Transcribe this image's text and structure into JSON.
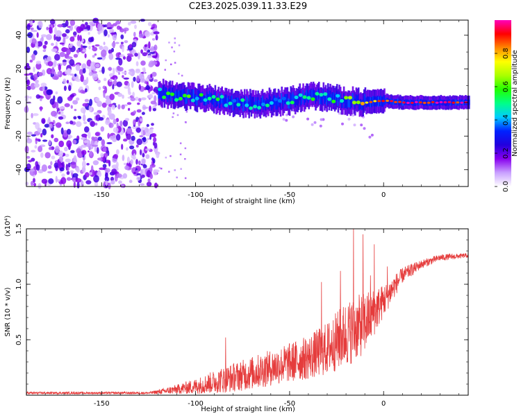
{
  "figure_title": "C2E3.2025.039.11.33.E29",
  "chart_data": [
    {
      "type": "heatmap",
      "title": "C2E3.2025.039.11.33.E29",
      "xlabel": "Height of straight line (km)",
      "ylabel": "Frequency (Hz)",
      "xlim": [
        -190,
        45
      ],
      "ylim": [
        -50,
        49
      ],
      "x_ticks": [
        -150,
        -100,
        -50,
        0
      ],
      "y_ticks": [
        -40,
        -20,
        0,
        20,
        40
      ],
      "x_tick_labels": [
        "-150",
        "-100",
        "-50",
        "0"
      ],
      "y_tick_labels": [
        "-40",
        "-20",
        "0",
        "20",
        "40"
      ],
      "colorbar": {
        "label": "Normalized spectral amplitude",
        "range": [
          0.0,
          1.0
        ],
        "ticks": [
          0.0,
          0.2,
          0.4,
          0.6,
          0.8
        ],
        "tick_labels": [
          "0.0",
          "0.2",
          "0.4",
          "0.6",
          "0.8"
        ],
        "colormap": [
          "#ffffff",
          "#c9a0ff",
          "#8800ee",
          "#2200dd",
          "#0022ff",
          "#00ccff",
          "#00ff88",
          "#22ff00",
          "#aaff00",
          "#ffff00",
          "#ff8800",
          "#ff0000",
          "#ff00bb"
        ]
      },
      "noise_region": {
        "x_range": [
          -190,
          -120
        ],
        "freq_range": [
          -50,
          49
        ],
        "level_range": [
          0.05,
          0.25
        ]
      },
      "signal_trace": {
        "description": "frequency centroid of dominant spectral band",
        "points": [
          {
            "x": -120,
            "freq": 6,
            "amp": 0.5
          },
          {
            "x": -110,
            "freq": 4,
            "amp": 0.55
          },
          {
            "x": -100,
            "freq": 3,
            "amp": 0.5
          },
          {
            "x": -90,
            "freq": 2,
            "amp": 0.5
          },
          {
            "x": -80,
            "freq": 0,
            "amp": 0.45
          },
          {
            "x": -70,
            "freq": -1,
            "amp": 0.5
          },
          {
            "x": -60,
            "freq": 0,
            "amp": 0.45
          },
          {
            "x": -50,
            "freq": 1,
            "amp": 0.45
          },
          {
            "x": -40,
            "freq": 4,
            "amp": 0.5
          },
          {
            "x": -30,
            "freq": 3,
            "amp": 0.45
          },
          {
            "x": -20,
            "freq": 1,
            "amp": 0.55
          },
          {
            "x": -10,
            "freq": 0,
            "amp": 0.75
          },
          {
            "x": 0,
            "freq": 1,
            "amp": 0.85
          },
          {
            "x": 10,
            "freq": 0,
            "amp": 0.9
          },
          {
            "x": 20,
            "freq": 0,
            "amp": 0.95
          },
          {
            "x": 30,
            "freq": 0,
            "amp": 0.95
          },
          {
            "x": 45,
            "freq": 0,
            "amp": 0.95
          }
        ]
      }
    },
    {
      "type": "line",
      "xlabel": "Height of straight line (km)",
      "ylabel": "SNR (10 * v/v)",
      "y_multiplier_label": "(x10⁴)",
      "xlim": [
        -190,
        45
      ],
      "ylim": [
        0,
        1.5
      ],
      "x_ticks": [
        -150,
        -100,
        -50,
        0
      ],
      "y_ticks": [
        0.5,
        1.0,
        1.5
      ],
      "x_tick_labels": [
        "-150",
        "-100",
        "-50",
        "0"
      ],
      "y_tick_labels": [
        "0.5",
        "1.0",
        "1.5"
      ],
      "series": [
        {
          "name": "SNR",
          "color": "#e53c3c",
          "envelope": [
            {
              "x": -190,
              "base": 0.02,
              "noise": 0.01
            },
            {
              "x": -125,
              "base": 0.02,
              "noise": 0.01
            },
            {
              "x": -115,
              "base": 0.04,
              "noise": 0.03
            },
            {
              "x": -100,
              "base": 0.08,
              "noise": 0.07
            },
            {
              "x": -85,
              "base": 0.14,
              "noise": 0.12
            },
            {
              "x": -70,
              "base": 0.2,
              "noise": 0.15
            },
            {
              "x": -55,
              "base": 0.27,
              "noise": 0.17
            },
            {
              "x": -40,
              "base": 0.34,
              "noise": 0.2
            },
            {
              "x": -30,
              "base": 0.42,
              "noise": 0.24
            },
            {
              "x": -20,
              "base": 0.55,
              "noise": 0.3
            },
            {
              "x": -10,
              "base": 0.65,
              "noise": 0.28
            },
            {
              "x": 0,
              "base": 0.85,
              "noise": 0.15
            },
            {
              "x": 10,
              "base": 1.08,
              "noise": 0.07
            },
            {
              "x": 20,
              "base": 1.18,
              "noise": 0.04
            },
            {
              "x": 30,
              "base": 1.24,
              "noise": 0.03
            },
            {
              "x": 45,
              "base": 1.26,
              "noise": 0.02
            }
          ],
          "peaks": [
            {
              "x": -84,
              "y": 0.52
            },
            {
              "x": -33,
              "y": 1.02
            },
            {
              "x": -23,
              "y": 1.12
            },
            {
              "x": -16,
              "y": 1.5
            },
            {
              "x": -11,
              "y": 1.45
            },
            {
              "x": -5,
              "y": 1.36
            },
            {
              "x": 2,
              "y": 1.16
            },
            {
              "x": -7,
              "y": 1.08
            }
          ]
        }
      ]
    }
  ]
}
